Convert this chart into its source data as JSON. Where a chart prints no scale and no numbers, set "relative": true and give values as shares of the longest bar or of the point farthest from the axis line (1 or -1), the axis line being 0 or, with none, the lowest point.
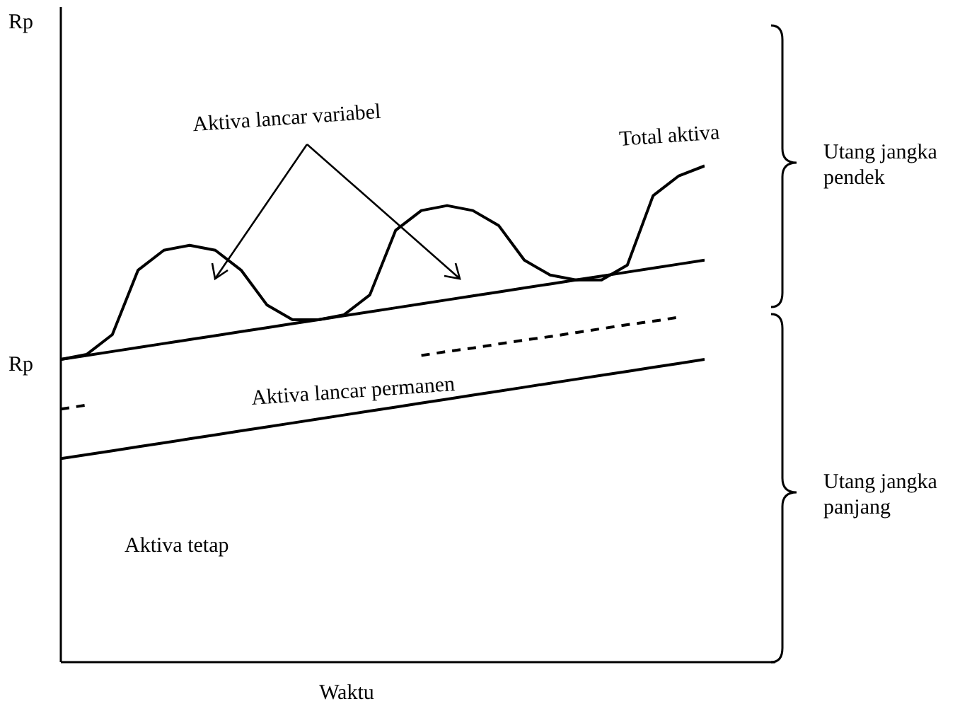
{
  "chart_data": {
    "type": "line",
    "xlabel": "Waktu",
    "relative": true,
    "marker": "none",
    "categories": [
      null,
      null,
      null,
      null,
      null,
      null,
      null,
      null,
      null,
      null,
      null,
      null,
      null,
      null,
      null,
      null,
      null,
      null,
      null,
      null,
      null,
      null,
      null,
      null,
      null,
      null
    ],
    "annotations": [
      "Rp",
      "Rp",
      "Aktiva lancar variabel",
      "Aktiva tetap",
      "Utang jangka pendek",
      "Utang jangka panjang"
    ],
    "series": [
      {
        "name": "Total aktiva",
        "color": "#000000",
        "line_style": "solid",
        "values": [
          0.61,
          0.62,
          0.66,
          0.79,
          0.83,
          0.84,
          0.83,
          0.79,
          0.72,
          0.69,
          0.69,
          0.7,
          0.74,
          0.87,
          0.91,
          0.92,
          0.91,
          0.88,
          0.81,
          0.78,
          0.77,
          0.77,
          0.8,
          0.94,
          0.98,
          1
        ]
      },
      {
        "color": "#000000",
        "line_style": "solid",
        "values": [
          0.61,
          0.618,
          0.626,
          0.634,
          0.642,
          0.65,
          0.658,
          0.666,
          0.674,
          0.682,
          0.69,
          0.698,
          0.706,
          0.714,
          0.722,
          0.73,
          0.738,
          0.746,
          0.754,
          0.762,
          0.77,
          0.778,
          0.786,
          0.794,
          0.802,
          0.81
        ]
      },
      {
        "name": "Aktiva lancar permanen",
        "color": "#000000",
        "line_style": "dashed",
        "values": [
          0.51,
          0.518,
          null,
          null,
          null,
          null,
          null,
          null,
          null,
          null,
          null,
          null,
          null,
          null,
          0.618,
          0.626,
          0.633,
          0.641,
          0.649,
          0.656,
          0.664,
          0.672,
          0.68,
          0.687,
          0.695,
          null
        ]
      },
      {
        "color": "#000000",
        "line_style": "solid",
        "values": [
          0.41,
          0.418,
          0.426,
          0.434,
          0.442,
          0.45,
          0.458,
          0.466,
          0.474,
          0.482,
          0.49,
          0.498,
          0.506,
          0.514,
          0.522,
          0.53,
          0.538,
          0.546,
          0.554,
          0.562,
          0.57,
          0.578,
          0.586,
          0.594,
          0.602,
          0.61
        ]
      }
    ]
  }
}
